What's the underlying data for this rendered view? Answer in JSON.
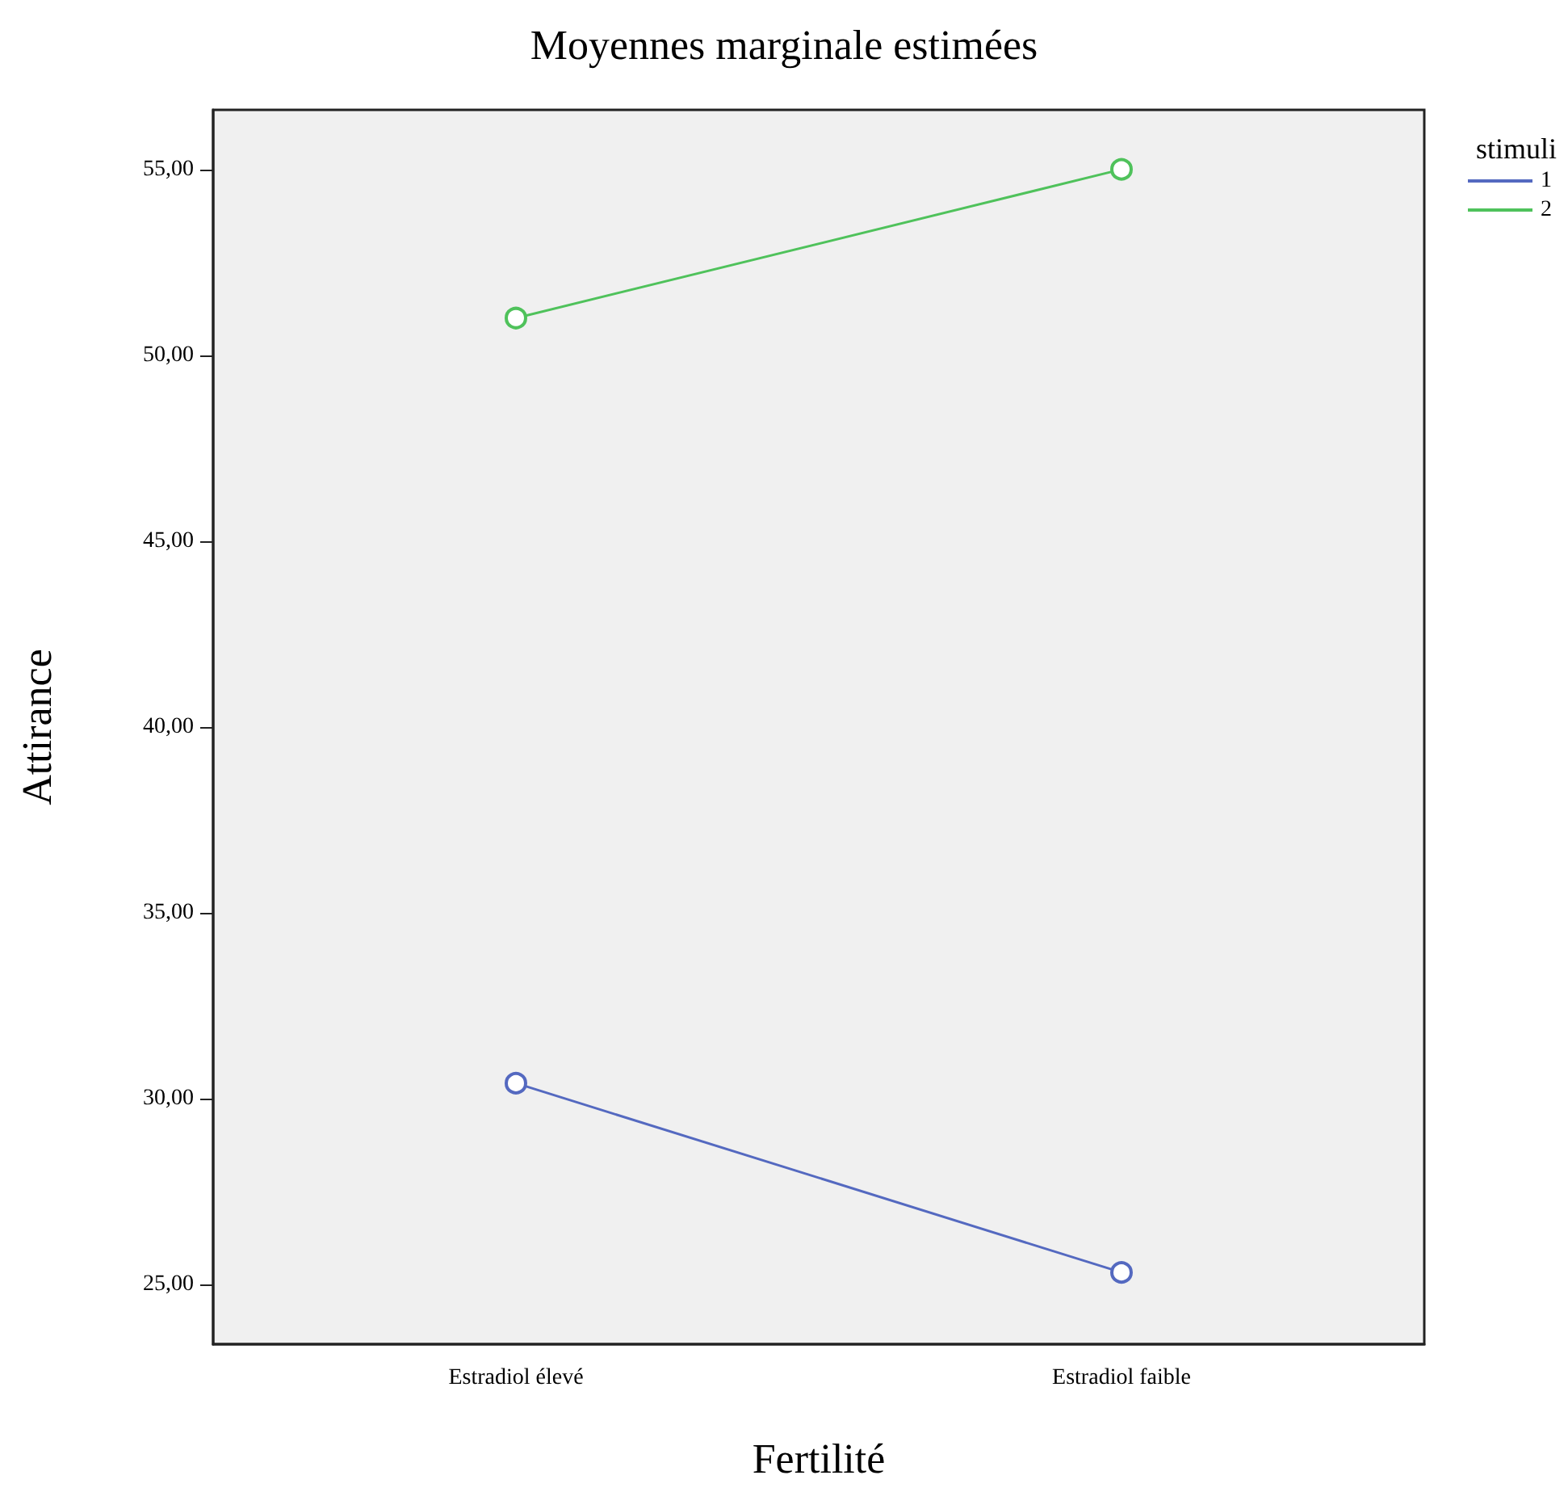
{
  "chart_data": {
    "type": "line",
    "title": "Moyennes marginale estimées",
    "xlabel": "Fertilité",
    "ylabel": "Attirance",
    "legend_title": "stimuli",
    "categories": [
      "Estradiol élevé",
      "Estradiol faible"
    ],
    "series": [
      {
        "name": "1",
        "color": "#5469c0",
        "values": [
          30.42,
          25.33
        ]
      },
      {
        "name": "2",
        "color": "#4fc25b",
        "values": [
          51.0,
          55.0
        ]
      }
    ],
    "ylim": [
      23.4,
      56.6
    ],
    "yticks": [
      {
        "value": 25,
        "label": "25,00"
      },
      {
        "value": 30,
        "label": "30,00"
      },
      {
        "value": 35,
        "label": "35,00"
      },
      {
        "value": 40,
        "label": "40,00"
      },
      {
        "value": 45,
        "label": "45,00"
      },
      {
        "value": 50,
        "label": "50,00"
      },
      {
        "value": 55,
        "label": "55,00"
      }
    ],
    "grid": false,
    "legend": "top right",
    "marker": "circle",
    "line_style": "solid"
  }
}
